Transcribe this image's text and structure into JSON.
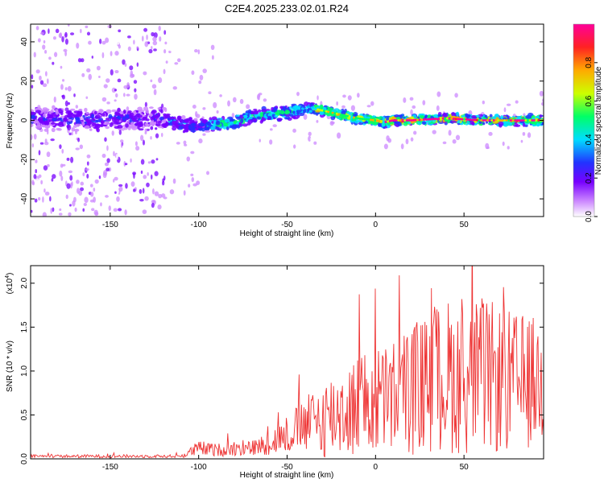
{
  "title": "C2E4.2025.233.02.01.R24",
  "chart_data": [
    {
      "type": "heatmap",
      "xlabel": "Height of straight line (km)",
      "ylabel": "Frequency (Hz)",
      "xlim": [
        -195,
        95
      ],
      "ylim": [
        -49,
        49
      ],
      "xticks": [
        -150,
        -100,
        -50,
        0,
        50
      ],
      "yticks": [
        -40,
        -20,
        0,
        20,
        40
      ],
      "colorbar": {
        "label": "Normalized spectral amplitude",
        "range": [
          0,
          1
        ],
        "ticks": [
          0.0,
          0.2,
          0.4,
          0.6,
          0.8
        ],
        "colors": [
          "#ffffff",
          "#cc88ff",
          "#7700ff",
          "#2233ff",
          "#00ddff",
          "#00ff66",
          "#ccff00",
          "#ffaa00",
          "#ff2222",
          "#ff0099"
        ]
      },
      "ridge": {
        "x": [
          -195,
          -150,
          -120,
          -110,
          -100,
          -80,
          -70,
          -60,
          -50,
          -40,
          -35,
          -30,
          -20,
          -10,
          0,
          5,
          10,
          20,
          40,
          60,
          80,
          95
        ],
        "freq": [
          1,
          0,
          1,
          -2,
          -3,
          -1,
          2,
          3,
          4,
          6,
          6,
          5,
          3,
          1,
          0,
          -1,
          0,
          0,
          1,
          0,
          0,
          0
        ]
      }
    },
    {
      "type": "line",
      "xlabel": "Height of straight line (km)",
      "ylabel": "SNR (10 * v/v)",
      "multiplier": "(x10",
      "multiplier_exp": "4",
      "multiplier_close": ")",
      "xlim": [
        -195,
        95
      ],
      "ylim": [
        0,
        2.2
      ],
      "xticks": [
        -150,
        -100,
        -50,
        0,
        50
      ],
      "yticks": [
        0.0,
        0.5,
        1.0,
        1.5,
        2.0
      ],
      "envelope": {
        "x": [
          -195,
          -150,
          -110,
          -100,
          -90,
          -80,
          -70,
          -60,
          -50,
          -40,
          -30,
          -20,
          -10,
          0,
          10,
          20,
          30,
          40,
          50,
          60,
          70,
          80,
          95
        ],
        "mean": [
          0.03,
          0.03,
          0.03,
          0.12,
          0.1,
          0.12,
          0.12,
          0.18,
          0.28,
          0.38,
          0.45,
          0.55,
          0.6,
          0.65,
          0.7,
          0.8,
          0.85,
          0.95,
          0.9,
          0.95,
          0.9,
          0.85,
          0.9
        ],
        "amp": [
          0.02,
          0.02,
          0.02,
          0.1,
          0.08,
          0.1,
          0.1,
          0.15,
          0.25,
          0.35,
          0.5,
          0.6,
          0.65,
          0.7,
          0.75,
          0.85,
          0.9,
          1.0,
          0.95,
          1.0,
          0.95,
          0.9,
          0.8
        ]
      },
      "color": "#ee3333"
    }
  ]
}
